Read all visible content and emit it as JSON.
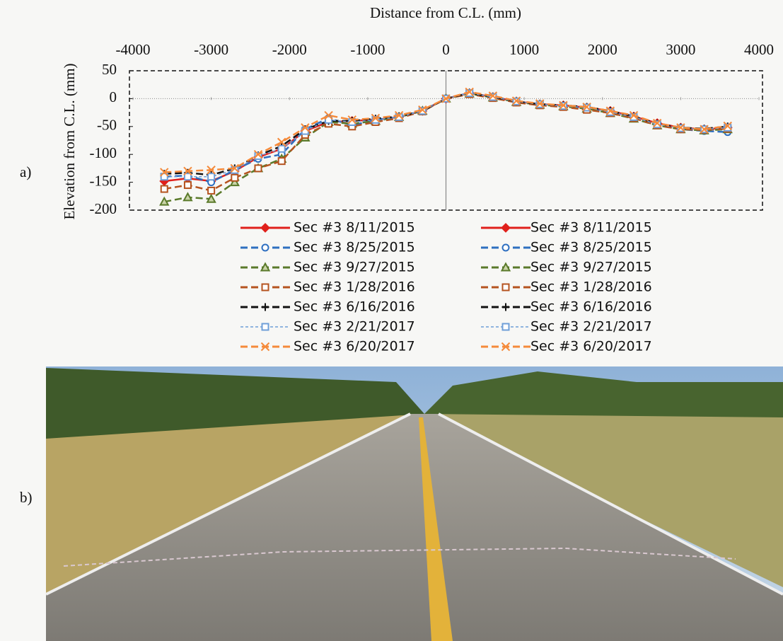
{
  "panel_labels": [
    "a)",
    "b)"
  ],
  "chart_data": {
    "type": "line",
    "xlabel": "Distance from C.L. (mm)",
    "ylabel": "Elevation from C.L. (mm)",
    "x": [
      -3600,
      -3300,
      -3000,
      -2700,
      -2400,
      -2100,
      -1800,
      -1500,
      -1200,
      -900,
      -600,
      -300,
      0,
      300,
      600,
      900,
      1200,
      1500,
      1800,
      2100,
      2400,
      2700,
      3000,
      3300,
      3600
    ],
    "xlim": [
      -4000,
      4000
    ],
    "xticks": [
      -4000,
      -3000,
      -2000,
      -1000,
      0,
      1000,
      2000,
      3000,
      4000
    ],
    "ylim": [
      -200,
      50
    ],
    "yticks": [
      -200,
      -150,
      -100,
      -50,
      0,
      50
    ],
    "series": [
      {
        "name": "Sec #3 8/11/2015",
        "color": "#e0201b",
        "marker": "diamond",
        "dash": "none",
        "values": [
          -148,
          -143,
          -148,
          -130,
          -105,
          -90,
          -58,
          -42,
          -40,
          -38,
          -33,
          -22,
          0,
          10,
          3,
          -5,
          -10,
          -12,
          -16,
          -22,
          -32,
          -44,
          -52,
          -55,
          -52
        ]
      },
      {
        "name": "Sec #3 8/25/2015",
        "color": "#2e6fc0",
        "marker": "circle",
        "dash": "10 5",
        "values": [
          -140,
          -138,
          -150,
          -128,
          -108,
          -100,
          -55,
          -35,
          -48,
          -38,
          -33,
          -22,
          0,
          10,
          2,
          -6,
          -10,
          -14,
          -17,
          -25,
          -34,
          -47,
          -55,
          -58,
          -60
        ]
      },
      {
        "name": "Sec #3 9/27/2015",
        "color": "#5a7a2a",
        "marker": "triangle",
        "dash": "10 5",
        "values": [
          -185,
          -177,
          -180,
          -150,
          -125,
          -108,
          -70,
          -42,
          -45,
          -40,
          -33,
          -22,
          0,
          9,
          2,
          -6,
          -11,
          -14,
          -18,
          -26,
          -36,
          -48,
          -55,
          -57,
          -55
        ]
      },
      {
        "name": "Sec #3 1/28/2016",
        "color": "#b5531f",
        "marker": "square",
        "dash": "10 5",
        "values": [
          -162,
          -155,
          -165,
          -142,
          -125,
          -112,
          -65,
          -45,
          -50,
          -42,
          -35,
          -23,
          0,
          8,
          1,
          -7,
          -12,
          -15,
          -20,
          -26,
          -35,
          -48,
          -55,
          -56,
          -54
        ]
      },
      {
        "name": "Sec #3 6/16/2016",
        "color": "#111111",
        "marker": "plus",
        "dash": "10 5",
        "values": [
          -135,
          -133,
          -137,
          -125,
          -102,
          -85,
          -55,
          -40,
          -40,
          -36,
          -32,
          -22,
          0,
          10,
          3,
          -5,
          -10,
          -12,
          -15,
          -22,
          -32,
          -45,
          -52,
          -54,
          -50
        ]
      },
      {
        "name": "Sec #3 2/21/2017",
        "color": "#6f9fd8",
        "marker": "square",
        "dash": "4 3",
        "values": [
          -140,
          -140,
          -140,
          -128,
          -103,
          -90,
          -58,
          -38,
          -42,
          -38,
          -33,
          -22,
          0,
          10,
          3,
          -5,
          -10,
          -13,
          -16,
          -24,
          -33,
          -46,
          -53,
          -55,
          -52
        ]
      },
      {
        "name": "Sec #3 6/20/2017",
        "color": "#f58a3a",
        "marker": "x",
        "dash": "10 5",
        "values": [
          -132,
          -130,
          -128,
          -125,
          -100,
          -78,
          -52,
          -30,
          -38,
          -35,
          -30,
          -20,
          0,
          12,
          5,
          -4,
          -9,
          -12,
          -15,
          -22,
          -30,
          -44,
          -52,
          -55,
          -49
        ]
      }
    ]
  }
}
